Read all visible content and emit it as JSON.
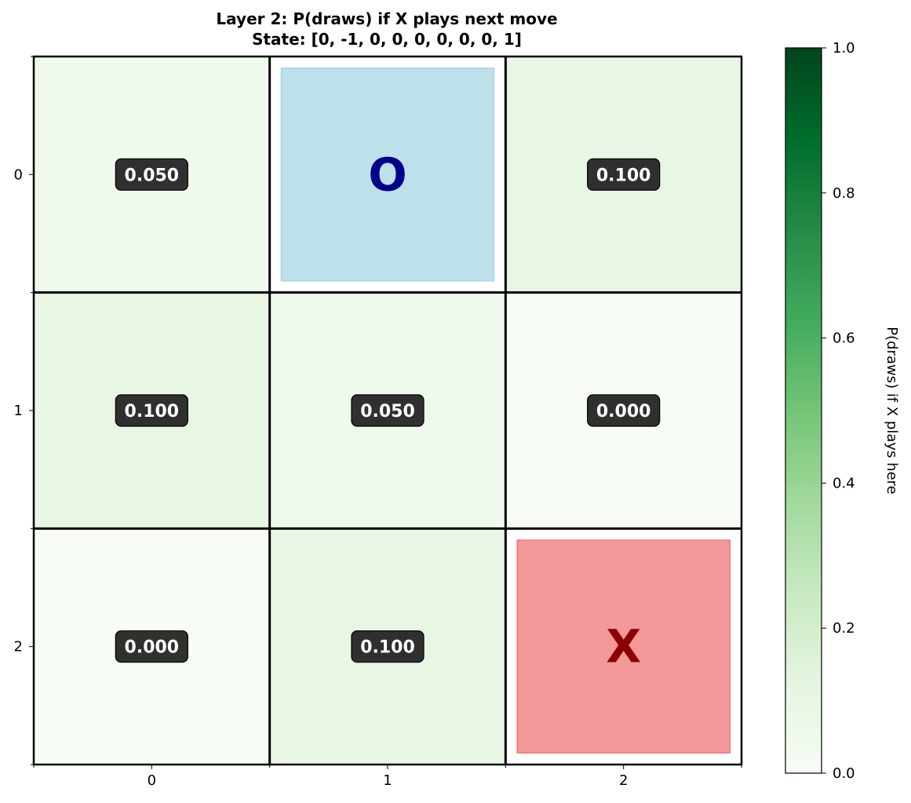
{
  "chart_data": [
    {
      "type": "heatmap",
      "title": "Layer 2: P(draws) if X plays next move",
      "subtitle": "State: [0, -1, 0, 0, 0, 0, 0, 0, 1]",
      "xlabel": "",
      "ylabel": "",
      "x_ticks": [
        "0",
        "1",
        "2"
      ],
      "y_ticks": [
        "0",
        "1",
        "2"
      ],
      "grid": true,
      "cells": [
        [
          {
            "type": "value",
            "value": 0.05,
            "label": "0.050"
          },
          {
            "type": "piece",
            "label": "O",
            "fill": "#add8e6",
            "text_color": "#00008b"
          },
          {
            "type": "value",
            "value": 0.1,
            "label": "0.100"
          }
        ],
        [
          {
            "type": "value",
            "value": 0.1,
            "label": "0.100"
          },
          {
            "type": "value",
            "value": 0.05,
            "label": "0.050"
          },
          {
            "type": "value",
            "value": 0.0,
            "label": "0.000"
          }
        ],
        [
          {
            "type": "value",
            "value": 0.0,
            "label": "0.000"
          },
          {
            "type": "value",
            "value": 0.1,
            "label": "0.100"
          },
          {
            "type": "piece",
            "label": "X",
            "fill": "#f08080",
            "text_color": "#8b0000"
          }
        ]
      ],
      "colorbar": {
        "label": "P(draws) if X plays here",
        "range": [
          0,
          1
        ],
        "ticks": [
          "0.0",
          "0.2",
          "0.4",
          "0.6",
          "0.8",
          "1.0"
        ],
        "colormap": "Greens",
        "colors": [
          "#f7fcf5",
          "#e5f5e0",
          "#c7e9c0",
          "#a1d99b",
          "#74c476",
          "#41ab5d",
          "#238b45",
          "#006d2c",
          "#00441b"
        ]
      },
      "label_box_color": "#1a1a1a"
    }
  ]
}
